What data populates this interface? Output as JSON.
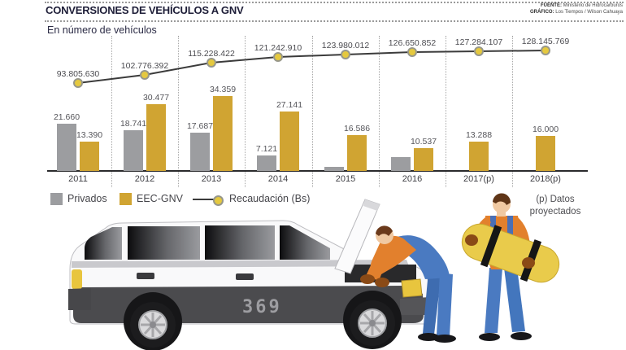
{
  "header": {
    "title": "CONVERSIONES DE VEHÍCULOS A GNV",
    "subtitle": "En número de vehículos",
    "source": {
      "label": "FUENTE:",
      "value": "Ministerio de Hidrocarburos"
    },
    "credit": {
      "label": "GRÁFICO:",
      "value": "Los Tiempos / Wilson Cahuaya"
    }
  },
  "legend": {
    "privados_label": "Privados",
    "eec_label": "EEC-GNV",
    "recaudacion_label": "Recaudación (Bs)"
  },
  "note": {
    "line1": "(p) Datos",
    "line2": "proyectados"
  },
  "illustration": {
    "car_badge": "369"
  },
  "colors": {
    "bar_privados": "#9C9DA0",
    "bar_eec": "#D0A432",
    "line": "#3B3B3B",
    "dot_fill": "#E5C93F",
    "dot_ring": "#97978A"
  },
  "chart_data": {
    "type": "bar+line",
    "categories": [
      "2011",
      "2012",
      "2013",
      "2014",
      "2015",
      "2016",
      "2017(p)",
      "2018(p)"
    ],
    "series": [
      {
        "name": "Privados",
        "type": "bar",
        "color": "#9C9DA0",
        "values": [
          21660,
          18741,
          17687,
          7121,
          1900,
          6300,
          null,
          null
        ],
        "labels": [
          "21.660",
          "18.741",
          "17.687",
          "7.121",
          "",
          "",
          null,
          null
        ]
      },
      {
        "name": "EEC-GNV",
        "type": "bar",
        "color": "#D0A432",
        "values": [
          13390,
          30477,
          34359,
          27141,
          16586,
          10537,
          13288,
          16000
        ],
        "labels": [
          "13.390",
          "30.477",
          "34.359",
          "27.141",
          "16.586",
          "10.537",
          "13.288",
          "16.000"
        ]
      },
      {
        "name": "Recaudación (Bs)",
        "type": "line",
        "color": "#3B3B3B",
        "values": [
          93805630,
          102776392,
          115228422,
          121242910,
          123980012,
          126650852,
          127284107,
          128145769
        ],
        "labels": [
          "93.805.630",
          "102.776.392",
          "115.228.422",
          "121.242.910",
          "123.980.012",
          "126.650.852",
          "127.284.107",
          "128.145.769"
        ]
      }
    ],
    "xlabel": "",
    "ylabel": "",
    "grid": "dotted vertical separators between years",
    "legend_position": "below chart"
  }
}
